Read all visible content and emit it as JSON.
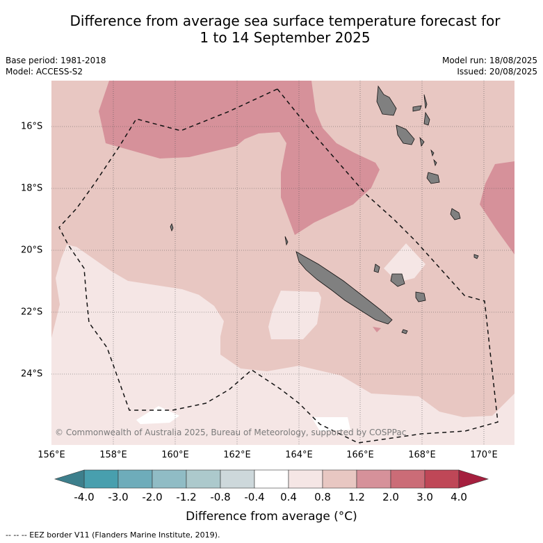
{
  "title_line1": "Difference from average sea surface temperature forecast for",
  "title_line2": "1 to 14 September 2025",
  "base_period": "Base period: 1981-2018",
  "model": "Model: ACCESS-S2",
  "model_run": "Model run: 18/08/2025",
  "issued": "Issued: 20/08/2025",
  "copyright": "© Commonwealth of Australia 2025, Bureau of Meteorology, supported by COSPPac",
  "lat_labels": [
    "16°S",
    "18°S",
    "20°S",
    "22°S",
    "24°S"
  ],
  "lon_labels": [
    "156°E",
    "158°E",
    "160°E",
    "162°E",
    "164°E",
    "166°E",
    "168°E",
    "170°E"
  ],
  "colorbar": {
    "title": "Difference from average (°C)",
    "ticks": [
      "-4.0",
      "-3.0",
      "-2.0",
      "-1.2",
      "-0.8",
      "-0.4",
      "0.4",
      "0.8",
      "1.2",
      "2.0",
      "3.0",
      "4.0"
    ],
    "colors": [
      "#489fae",
      "#6eacba",
      "#90bcc5",
      "#acc9cc",
      "#cdd8db",
      "#ffffff",
      "#f5e6e5",
      "#e8c7c2",
      "#d6919a",
      "#cb6c77",
      "#bf4757"
    ],
    "under_color": "#3d7f8c",
    "over_color": "#a51f3e"
  },
  "legend": "-- -- -- EEZ border V11 (Flanders Marine Institute, 2019).",
  "colors": {
    "anomaly_0_4_0_8": "#f5e6e5",
    "anomaly_0_8_1_2": "#e8c7c2",
    "anomaly_1_2_2_0": "#d6919a",
    "land": "#808080"
  }
}
